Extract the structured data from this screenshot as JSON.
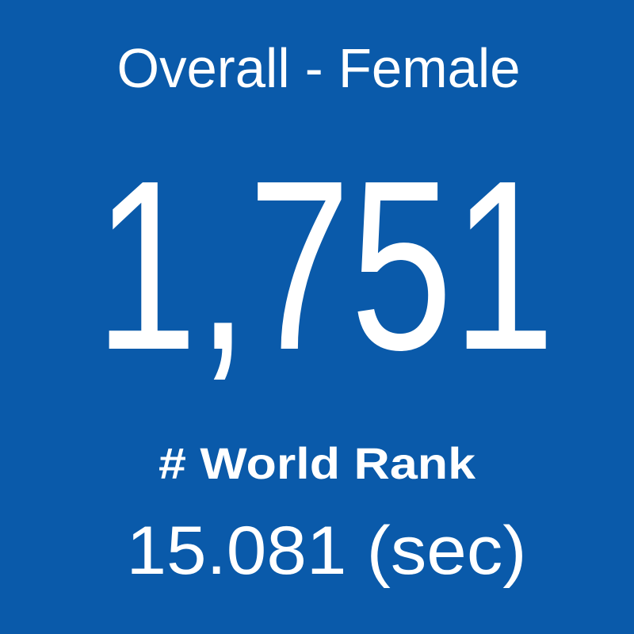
{
  "tile": {
    "title": "Overall - Female",
    "value": "1,751",
    "label": "# World Rank",
    "detail": "15.081 (sec)"
  }
}
